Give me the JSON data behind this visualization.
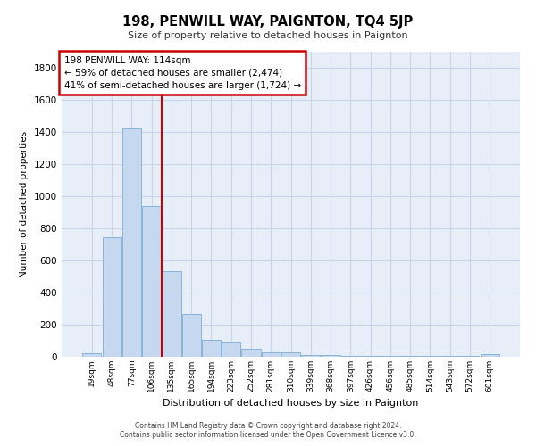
{
  "title": "198, PENWILL WAY, PAIGNTON, TQ4 5JP",
  "subtitle": "Size of property relative to detached houses in Paignton",
  "xlabel": "Distribution of detached houses by size in Paignton",
  "ylabel": "Number of detached properties",
  "categories": [
    "19sqm",
    "48sqm",
    "77sqm",
    "106sqm",
    "135sqm",
    "165sqm",
    "194sqm",
    "223sqm",
    "252sqm",
    "281sqm",
    "310sqm",
    "339sqm",
    "368sqm",
    "397sqm",
    "426sqm",
    "456sqm",
    "485sqm",
    "514sqm",
    "543sqm",
    "572sqm",
    "601sqm"
  ],
  "values": [
    22,
    745,
    1420,
    940,
    530,
    265,
    105,
    92,
    50,
    28,
    28,
    10,
    12,
    5,
    5,
    5,
    5,
    5,
    5,
    5,
    18
  ],
  "bar_color": "#c5d8f0",
  "bar_edge_color": "#7aadd4",
  "vline_color": "#cc0000",
  "vline_x": 3.5,
  "annotation_line1": "198 PENWILL WAY: 114sqm",
  "annotation_line2": "← 59% of detached houses are smaller (2,474)",
  "annotation_line3": "41% of semi-detached houses are larger (1,724) →",
  "annotation_box_color": "#cc0000",
  "grid_color": "#c8d4e8",
  "background_color": "#e8eef8",
  "ylim": [
    0,
    1900
  ],
  "yticks": [
    0,
    200,
    400,
    600,
    800,
    1000,
    1200,
    1400,
    1600,
    1800
  ],
  "footer_line1": "Contains HM Land Registry data © Crown copyright and database right 2024.",
  "footer_line2": "Contains public sector information licensed under the Open Government Licence v3.0."
}
